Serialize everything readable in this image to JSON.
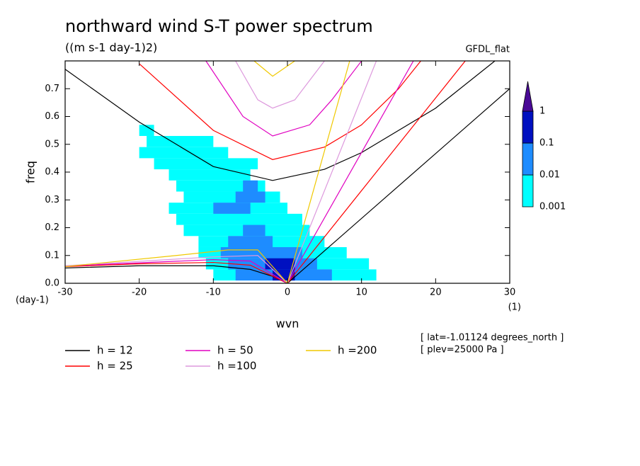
{
  "chart_data": {
    "type": "spectrum",
    "title": "northward wind S-T power spectrum",
    "subtitle": "((m s-1 day-1)2)",
    "source_label": "GFDL_flat",
    "x_label": "wvn",
    "y_label": "freq",
    "y_unit": "(day-1)",
    "x_unit": "(1)",
    "notes": [
      "[ lat=-1.01124 degrees_north ]",
      "[ plev=25000 Pa ]"
    ],
    "xlim": [
      -30,
      30
    ],
    "xticks": [
      -30,
      -20,
      -10,
      0,
      10,
      20,
      30
    ],
    "ylim": [
      0,
      0.8
    ],
    "yticks": [
      {
        "value": 0,
        "label": "0.0"
      },
      0.1,
      0.2,
      0.3,
      0.4,
      0.5,
      0.6,
      0.7
    ],
    "colorbar": {
      "levels": [
        0.001,
        0.01,
        0.1,
        1
      ],
      "colors": [
        "#00ffff",
        "#1e8cff",
        "#0010c0",
        "#4a0a96"
      ]
    },
    "shading": [
      {
        "min": 0.001,
        "cells": [
          [
            0.55,
            -20,
            -18
          ],
          [
            0.51,
            -19,
            -10
          ],
          [
            0.47,
            -20,
            -8
          ],
          [
            0.43,
            -18,
            -4
          ],
          [
            0.39,
            -16,
            -5
          ],
          [
            0.35,
            -15,
            -3
          ],
          [
            0.31,
            -14,
            -1
          ],
          [
            0.27,
            -16,
            0
          ],
          [
            0.23,
            -15,
            2
          ],
          [
            0.19,
            -14,
            3
          ],
          [
            0.15,
            -12,
            5
          ],
          [
            0.11,
            -12,
            8
          ],
          [
            0.07,
            -11,
            11
          ],
          [
            0.03,
            -10,
            12
          ]
        ]
      },
      {
        "min": 0.01,
        "cells": [
          [
            0.35,
            -6,
            -4
          ],
          [
            0.31,
            -7,
            -3
          ],
          [
            0.27,
            -10,
            -5
          ],
          [
            0.19,
            -6,
            -3
          ],
          [
            0.15,
            -8,
            -2
          ],
          [
            0.11,
            -9,
            2
          ],
          [
            0.07,
            -8,
            4
          ],
          [
            0.03,
            -7,
            6
          ]
        ]
      },
      {
        "min": 0.1,
        "cells": [
          [
            0.07,
            -3,
            1
          ],
          [
            0.03,
            -2,
            1
          ]
        ]
      }
    ],
    "series": [
      {
        "name": "h = 12",
        "color": "#000000",
        "branches": [
          {
            "x": [
              -30,
              -20,
              -10,
              -2,
              5,
              10,
              20,
              28
            ],
            "y": [
              0.77,
              0.58,
              0.42,
              0.37,
              0.41,
              0.47,
              0.63,
              0.8
            ]
          },
          {
            "x": [
              0,
              30
            ],
            "y": [
              0,
              0.7
            ]
          },
          {
            "x": [
              -30,
              -20,
              -10,
              -5,
              -2,
              0
            ],
            "y": [
              0.055,
              0.063,
              0.063,
              0.05,
              0.025,
              0
            ]
          }
        ]
      },
      {
        "name": "h = 25",
        "color": "#ff0000",
        "branches": [
          {
            "x": [
              -20,
              -10,
              -2,
              5,
              10,
              15,
              18
            ],
            "y": [
              0.79,
              0.55,
              0.445,
              0.49,
              0.57,
              0.7,
              0.8
            ]
          },
          {
            "x": [
              0,
              24
            ],
            "y": [
              0,
              0.8
            ]
          },
          {
            "x": [
              -30,
              -20,
              -10,
              -5,
              0
            ],
            "y": [
              0.06,
              0.07,
              0.075,
              0.065,
              0
            ]
          }
        ]
      },
      {
        "name": "h = 50",
        "color": "#e000c0",
        "branches": [
          {
            "x": [
              -11,
              -6,
              -2,
              3,
              6,
              10
            ],
            "y": [
              0.8,
              0.6,
              0.53,
              0.57,
              0.66,
              0.8
            ]
          },
          {
            "x": [
              0,
              17
            ],
            "y": [
              0,
              0.8
            ]
          },
          {
            "x": [
              -30,
              -10,
              -5,
              0
            ],
            "y": [
              0.062,
              0.085,
              0.08,
              0
            ]
          }
        ]
      },
      {
        "name": "h =100",
        "color": "#dd99dd",
        "branches": [
          {
            "x": [
              -7,
              -4,
              -2,
              1,
              5
            ],
            "y": [
              0.8,
              0.66,
              0.63,
              0.66,
              0.8
            ]
          },
          {
            "x": [
              0,
              12
            ],
            "y": [
              0,
              0.8
            ]
          },
          {
            "x": [
              -30,
              -10,
              -4,
              0
            ],
            "y": [
              0.063,
              0.095,
              0.1,
              0
            ]
          }
        ]
      },
      {
        "name": "h =200",
        "color": "#f0c800",
        "branches": [
          {
            "x": [
              -4.5,
              -2,
              1
            ],
            "y": [
              0.8,
              0.745,
              0.8
            ]
          },
          {
            "x": [
              0,
              8.4
            ],
            "y": [
              0,
              0.8
            ]
          },
          {
            "x": [
              -30,
              -15,
              -8,
              -4,
              0
            ],
            "y": [
              0.06,
              0.1,
              0.12,
              0.12,
              0
            ]
          }
        ]
      }
    ]
  }
}
